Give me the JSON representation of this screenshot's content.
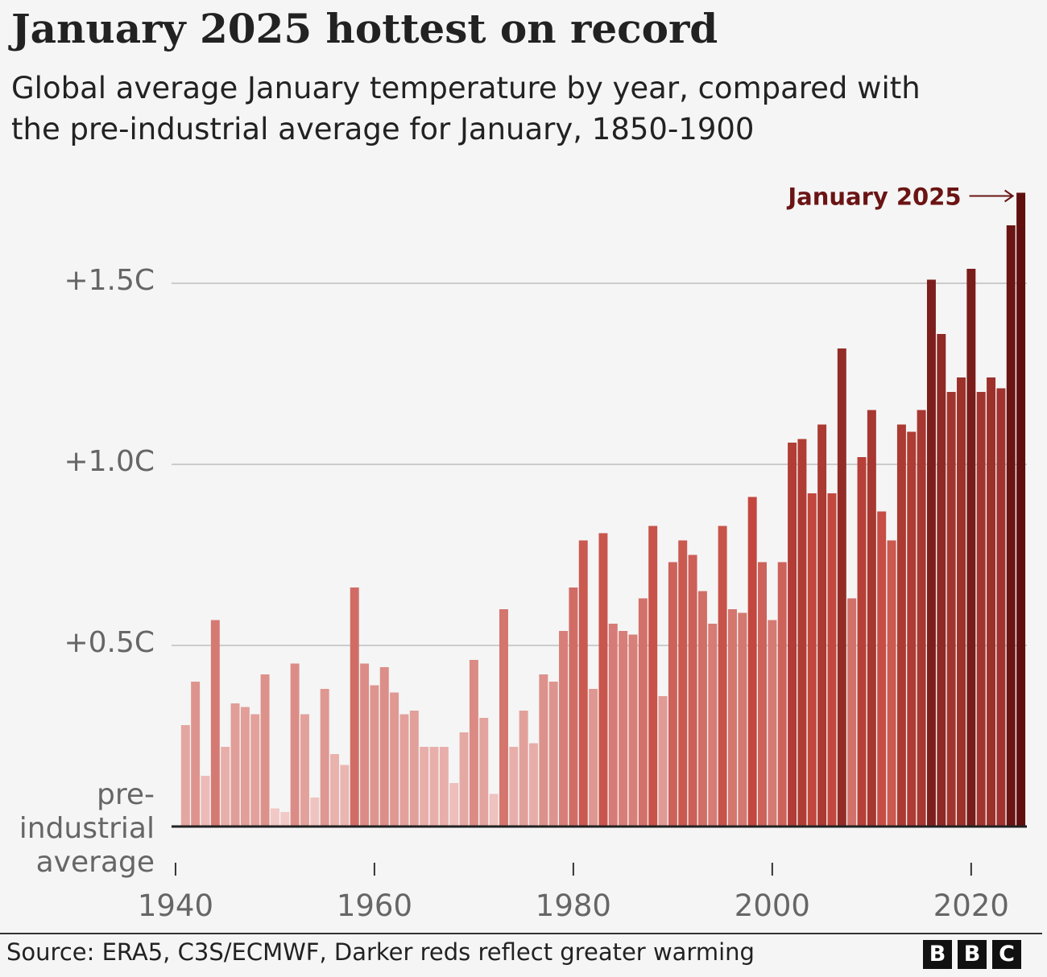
{
  "chart_data": {
    "type": "bar",
    "title": "January 2025 hottest on record",
    "subtitle": "Global average January temperature by year, compared with the pre-industrial average for January, 1850-1900",
    "annotation": "January 2025",
    "source": "Source: ERA5, C3S/ECMWF, Darker reds reflect greater warming",
    "logo": [
      "B",
      "B",
      "C"
    ],
    "x": [
      1941,
      1942,
      1943,
      1944,
      1945,
      1946,
      1947,
      1948,
      1949,
      1950,
      1951,
      1952,
      1953,
      1954,
      1955,
      1956,
      1957,
      1958,
      1959,
      1960,
      1961,
      1962,
      1963,
      1964,
      1965,
      1966,
      1967,
      1968,
      1969,
      1970,
      1971,
      1972,
      1973,
      1974,
      1975,
      1976,
      1977,
      1978,
      1979,
      1980,
      1981,
      1982,
      1983,
      1984,
      1985,
      1986,
      1987,
      1988,
      1989,
      1990,
      1991,
      1992,
      1993,
      1994,
      1995,
      1996,
      1997,
      1998,
      1999,
      2000,
      2001,
      2002,
      2003,
      2004,
      2005,
      2006,
      2007,
      2008,
      2009,
      2010,
      2011,
      2012,
      2013,
      2014,
      2015,
      2016,
      2017,
      2018,
      2019,
      2020,
      2021,
      2022,
      2023,
      2024,
      2025
    ],
    "values": [
      0.28,
      0.4,
      0.14,
      0.57,
      0.22,
      0.34,
      0.33,
      0.31,
      0.42,
      0.05,
      0.04,
      0.45,
      0.31,
      0.08,
      0.38,
      0.2,
      0.17,
      0.66,
      0.45,
      0.39,
      0.44,
      0.37,
      0.31,
      0.32,
      0.22,
      0.22,
      0.22,
      0.12,
      0.26,
      0.46,
      0.3,
      0.09,
      0.6,
      0.22,
      0.32,
      0.23,
      0.42,
      0.4,
      0.54,
      0.66,
      0.79,
      0.38,
      0.81,
      0.56,
      0.54,
      0.53,
      0.63,
      0.83,
      0.36,
      0.73,
      0.79,
      0.75,
      0.65,
      0.56,
      0.83,
      0.6,
      0.59,
      0.91,
      0.73,
      0.57,
      0.73,
      1.06,
      1.07,
      0.92,
      1.11,
      0.92,
      1.32,
      0.63,
      1.02,
      1.15,
      0.87,
      0.79,
      1.11,
      1.09,
      1.15,
      1.51,
      1.36,
      1.2,
      1.24,
      1.54,
      1.2,
      1.24,
      1.21,
      1.66,
      1.75
    ],
    "color_stops": [
      "#f3d0cd",
      "#c4483f",
      "#5a0c0c"
    ],
    "xlim": [
      1939.6,
      2025.6
    ],
    "xticks": [
      1940,
      1960,
      1980,
      2000,
      2020
    ],
    "ylim": [
      0,
      1.8
    ],
    "yticks": [
      {
        "value": 0,
        "label": "pre-industrial average"
      },
      {
        "value": 0.5,
        "label": "+0.5C"
      },
      {
        "value": 1.0,
        "label": "+1.0C"
      },
      {
        "value": 1.5,
        "label": "+1.5C"
      }
    ],
    "grid": true
  }
}
